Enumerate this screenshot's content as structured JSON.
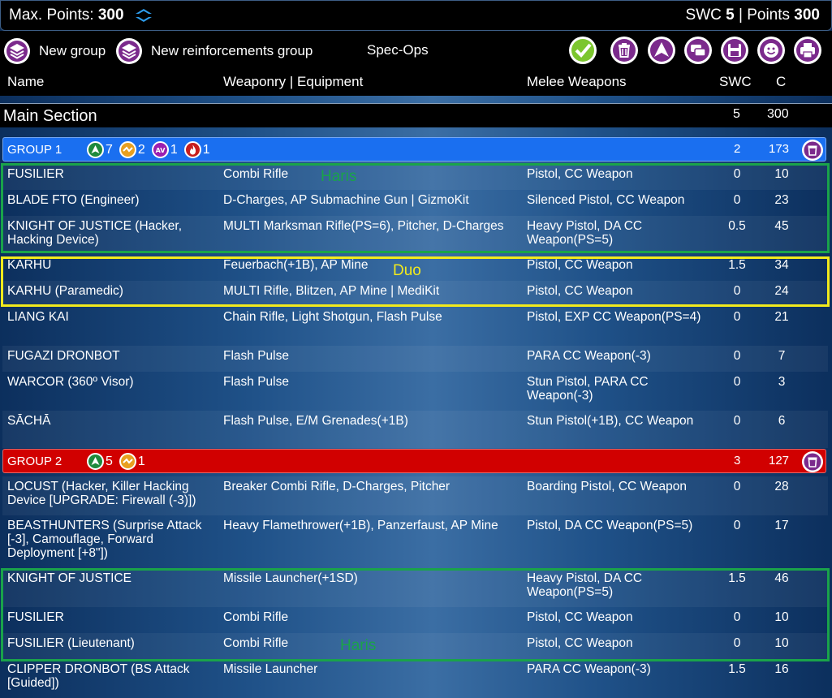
{
  "topbar": {
    "max_points_label": "Max. Points:",
    "max_points_value": "300",
    "swc_label": "SWC",
    "swc_value": "5",
    "sep": "|",
    "points_label": "Points",
    "points_value": "300"
  },
  "toolbar": {
    "new_group": "New group",
    "new_reinf": "New reinforcements group",
    "spec_ops": "Spec-Ops"
  },
  "columns": {
    "name": "Name",
    "weaponry": "Weaponry | Equipment",
    "melee": "Melee Weapons",
    "swc": "SWC",
    "cost": "C"
  },
  "section": {
    "title": "Main Section",
    "swc": "5",
    "cost": "300"
  },
  "group1": {
    "title": "GROUP 1",
    "badges": [
      "7",
      "2",
      "1",
      "1"
    ],
    "swc": "2",
    "cost": "173"
  },
  "group2": {
    "title": "GROUP 2",
    "badges": [
      "5",
      "1"
    ],
    "swc": "3",
    "cost": "127"
  },
  "rows": [
    {
      "name": "FUSILIER",
      "weap": "Combi Rifle",
      "melee": "Pistol, CC Weapon",
      "swc": "0",
      "cost": "10"
    },
    {
      "name": "BLADE FTO (Engineer)",
      "weap": "D-Charges, AP Submachine Gun | GizmoKit",
      "melee": "Silenced Pistol, CC Weapon",
      "swc": "0",
      "cost": "23"
    },
    {
      "name": "KNIGHT OF JUSTICE (Hacker, Hacking Device)",
      "weap": "MULTI Marksman Rifle(PS=6), Pitcher, D-Charges",
      "melee": "Heavy Pistol, DA CC Weapon(PS=5)",
      "swc": "0.5",
      "cost": "45"
    },
    {
      "name": "KARHU",
      "weap": "Feuerbach(+1B), AP Mine",
      "melee": "Pistol, CC Weapon",
      "swc": "1.5",
      "cost": "34"
    },
    {
      "name": "KARHU (Paramedic)",
      "weap": "MULTI Rifle, Blitzen, AP Mine | MediKit",
      "melee": "Pistol, CC Weapon",
      "swc": "0",
      "cost": "24"
    },
    {
      "name": "LIANG KAI",
      "weap": "Chain Rifle, Light Shotgun, Flash Pulse",
      "melee": "Pistol, EXP CC Weapon(PS=4)",
      "swc": "0",
      "cost": "21"
    },
    {
      "name": "FUGAZI DRONBOT",
      "weap": "Flash Pulse",
      "melee": "PARA CC Weapon(-3)",
      "swc": "0",
      "cost": "7"
    },
    {
      "name": "WARCOR (360º Visor)",
      "weap": "Flash Pulse",
      "melee": "Stun Pistol, PARA CC Weapon(-3)",
      "swc": "0",
      "cost": "3"
    },
    {
      "name": "SĀCHĀ",
      "weap": "Flash Pulse, E/M Grenades(+1B)",
      "melee": "Stun Pistol(+1B), CC Weapon",
      "swc": "0",
      "cost": "6"
    },
    {
      "name": "LOCUST (Hacker, Killer Hacking Device [UPGRADE: Firewall (-3)])",
      "weap": "Breaker Combi Rifle, D-Charges, Pitcher",
      "melee": "Boarding Pistol, CC Weapon",
      "swc": "0",
      "cost": "28"
    },
    {
      "name": "BEASTHUNTERS (Surprise Attack [-3], Camouflage, Forward Deployment [+8\"])",
      "weap": "Heavy Flamethrower(+1B), Panzerfaust, AP Mine",
      "melee": "Pistol, DA CC Weapon(PS=5)",
      "swc": "0",
      "cost": "17"
    },
    {
      "name": "KNIGHT OF JUSTICE",
      "weap": "Missile Launcher(+1SD)",
      "melee": "Heavy Pistol, DA CC Weapon(PS=5)",
      "swc": "1.5",
      "cost": "46"
    },
    {
      "name": "FUSILIER",
      "weap": "Combi Rifle",
      "melee": "Pistol, CC Weapon",
      "swc": "0",
      "cost": "10"
    },
    {
      "name": "FUSILIER (Lieutenant)",
      "weap": "Combi Rifle",
      "melee": "Pistol, CC Weapon",
      "swc": "0",
      "cost": "10"
    },
    {
      "name": "CLIPPER DRONBOT (BS Attack [Guided])",
      "weap": "Missile Launcher",
      "melee": "PARA CC Weapon(-3)",
      "swc": "1.5",
      "cost": "16"
    }
  ],
  "notes": {
    "haris1": "Haris",
    "duo": "Duo",
    "haris2": "Haris"
  }
}
